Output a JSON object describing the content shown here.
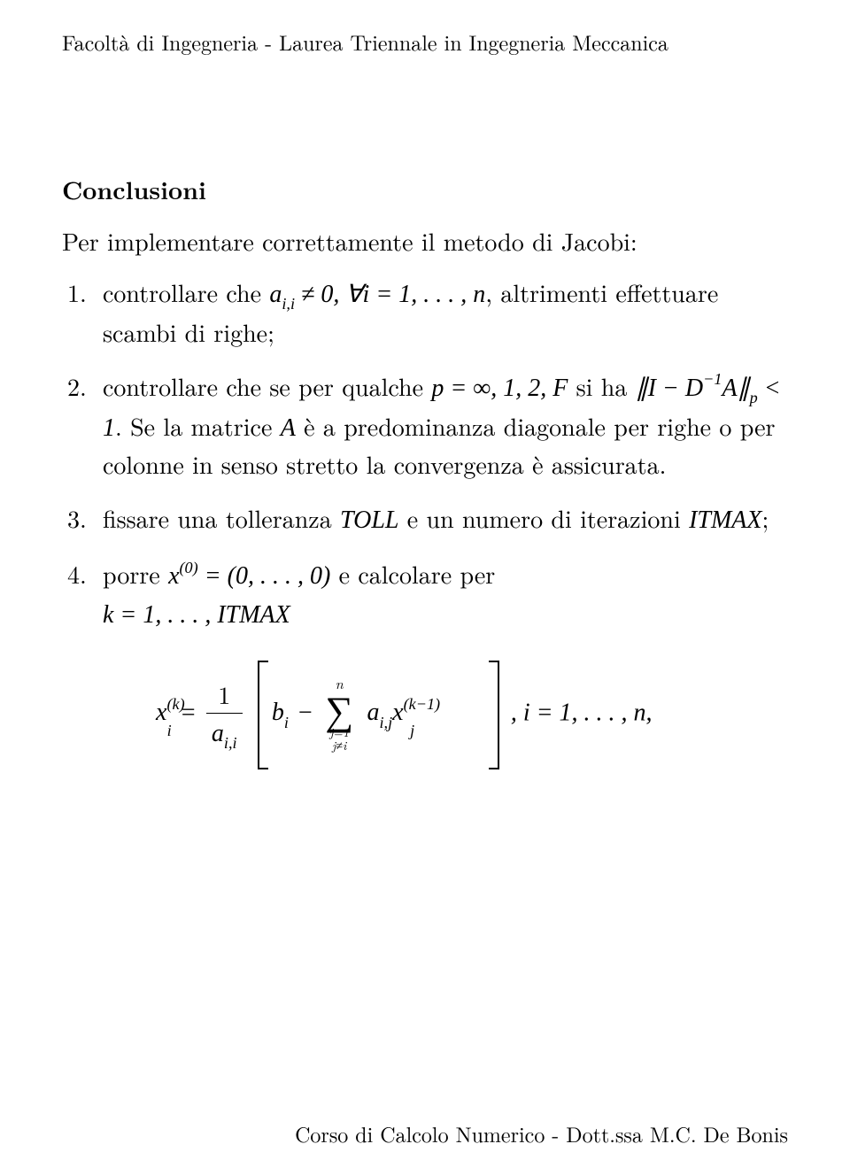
{
  "header": "Facoltà di Ingegneria - Laurea Triennale in Ingegneria Meccanica",
  "section_title": "Conclusioni",
  "intro": "Per implementare correttamente il metodo di Jacobi:",
  "items": {
    "i1_a": "controllare che ",
    "i1_b": ", altrimenti effettuare scambi di righe;",
    "i2_a": "controllare che se per qualche ",
    "i2_b": " si ha ",
    "i2_c": ". Se la matrice ",
    "i2_d": " è a predominanza diagonale per righe o per colonne in senso stretto la convergenza è assicurata.",
    "i3_a": "fissare una tolleranza ",
    "i3_b": " e un numero di iterazioni ",
    "i4_a": "porre ",
    "i4_b": " e calcolare per "
  },
  "math": {
    "aii_neq": "a",
    "aii_sub": "i,i",
    "neq0": " ≠ 0, ∀",
    "i_eq": " = 1, . . . , ",
    "n": "n",
    "p_eq": "p = ∞, 1, 2, F",
    "norm": "∥I − D",
    "norm_sup": "−1",
    "norm_b": "A∥",
    "norm_sub": "p",
    "lt1": " < 1",
    "A": "A",
    "TOLL": "TOLL",
    "ITMAX": "ITMAX",
    "semicolon": ";",
    "x0": "x",
    "x0_sup": "(0)",
    "x0_eq": " = (0, . . . , 0)",
    "k_eq": "k = 1, . . . , ITMAX",
    "xk_sup": "(k)",
    "i_sub": "i",
    "one": "1",
    "bi": "b",
    "minus": " − ",
    "sum_top": "n",
    "sum_bot1": "j=1",
    "sum_bot2": "j≠i",
    "aij": "a",
    "aij_sub": "i,j",
    "xj": "x",
    "xj_sup": "(k−1)",
    "j_sub": "j",
    "tail": ",    i = 1, . . . , n,"
  },
  "footer": "Corso di Calcolo Numerico - Dott.ssa M.C. De Bonis"
}
